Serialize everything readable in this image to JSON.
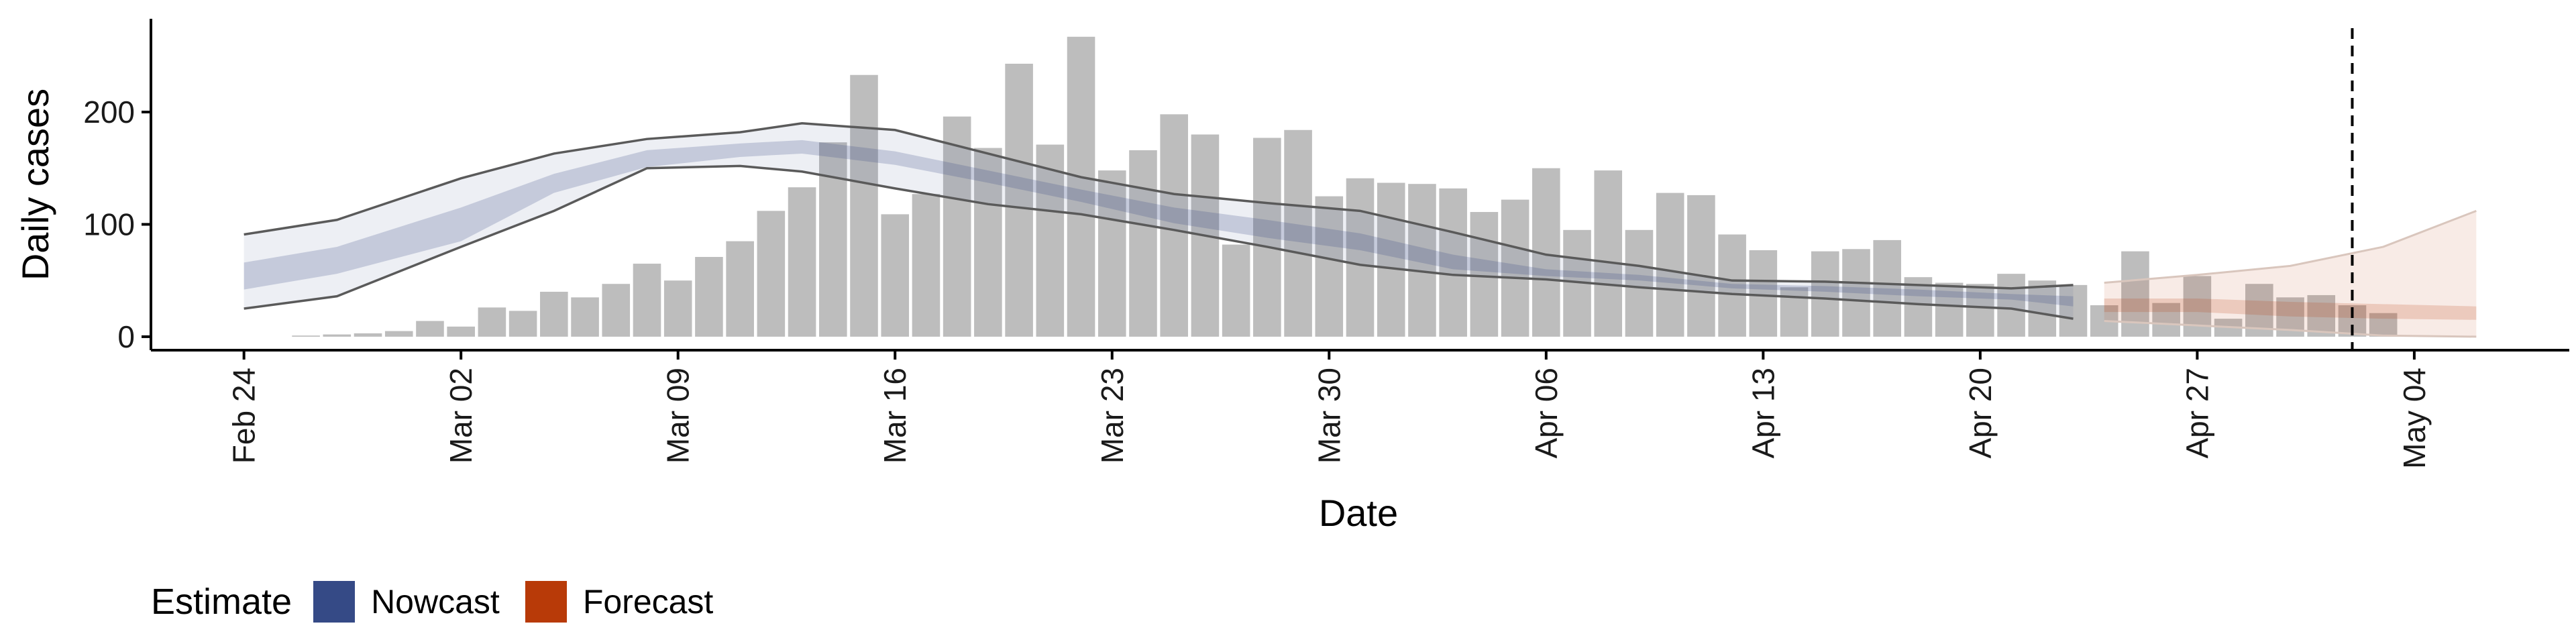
{
  "chart_data": {
    "type": "bar",
    "xlabel": "Date",
    "ylabel": "Daily cases",
    "x_range": [
      "2020-02-21",
      "2020-05-09"
    ],
    "ylim": [
      -12,
      283
    ],
    "y_ticks": [
      0,
      100,
      200
    ],
    "x_ticks": [
      {
        "date": "2020-02-24",
        "label": "Feb 24"
      },
      {
        "date": "2020-03-02",
        "label": "Mar 02"
      },
      {
        "date": "2020-03-09",
        "label": "Mar 09"
      },
      {
        "date": "2020-03-16",
        "label": "Mar 16"
      },
      {
        "date": "2020-03-23",
        "label": "Mar 23"
      },
      {
        "date": "2020-03-30",
        "label": "Mar 30"
      },
      {
        "date": "2020-04-06",
        "label": "Apr 06"
      },
      {
        "date": "2020-04-13",
        "label": "Apr 13"
      },
      {
        "date": "2020-04-20",
        "label": "Apr 20"
      },
      {
        "date": "2020-04-27",
        "label": "Apr 27"
      },
      {
        "date": "2020-05-04",
        "label": "May 04"
      }
    ],
    "grid": false,
    "legend": {
      "position": "bottom-left",
      "title": "Estimate",
      "items": [
        {
          "label": "Nowcast",
          "color": "#354a86"
        },
        {
          "label": "Forecast",
          "color": "#b83a08"
        }
      ]
    },
    "reference_line": {
      "date": "2020-05-02",
      "style": "dashed",
      "color": "#000000"
    },
    "bars": {
      "color": "#bdbdbd",
      "start_date": "2020-02-25",
      "values": [
        0,
        1,
        2,
        3,
        5,
        14,
        9,
        26,
        23,
        40,
        35,
        47,
        65,
        50,
        71,
        85,
        112,
        133,
        173,
        233,
        109,
        127,
        196,
        168,
        243,
        171,
        267,
        148,
        166,
        198,
        180,
        82,
        177,
        184,
        125,
        141,
        137,
        136,
        132,
        111,
        122,
        150,
        95,
        148,
        95,
        128,
        126,
        91,
        77,
        44,
        76,
        78,
        86,
        53,
        48,
        47,
        56,
        50,
        46,
        28,
        76,
        30,
        54,
        16,
        47,
        35,
        37,
        28,
        21
      ]
    },
    "series": [
      {
        "name": "Nowcast",
        "color": "#354a86",
        "dates": [
          "2020-02-24",
          "2020-02-27",
          "2020-03-02",
          "2020-03-05",
          "2020-03-08",
          "2020-03-11",
          "2020-03-13",
          "2020-03-16",
          "2020-03-19",
          "2020-03-22",
          "2020-03-25",
          "2020-03-28",
          "2020-03-31",
          "2020-04-03",
          "2020-04-06",
          "2020-04-09",
          "2020-04-12",
          "2020-04-15",
          "2020-04-18",
          "2020-04-21",
          "2020-04-23"
        ],
        "upper_90": [
          91,
          104,
          141,
          163,
          176,
          182,
          190,
          184,
          163,
          142,
          127,
          119,
          112,
          93,
          73,
          63,
          50,
          49,
          46,
          43,
          46
        ],
        "upper_50": [
          66,
          80,
          115,
          145,
          166,
          172,
          175,
          165,
          148,
          131,
          115,
          104,
          92,
          73,
          60,
          55,
          47,
          45,
          42,
          38,
          36
        ],
        "lower_50": [
          42,
          56,
          85,
          128,
          151,
          160,
          163,
          153,
          137,
          120,
          101,
          88,
          77,
          60,
          54,
          50,
          43,
          40,
          36,
          33,
          27
        ],
        "lower_90": [
          25,
          36,
          80,
          112,
          150,
          152,
          147,
          132,
          118,
          109,
          95,
          80,
          64,
          55,
          51,
          44,
          38,
          34,
          29,
          25,
          16
        ]
      },
      {
        "name": "Forecast",
        "color": "#b83a08",
        "dates": [
          "2020-04-24",
          "2020-04-27",
          "2020-04-30",
          "2020-05-03",
          "2020-05-06"
        ],
        "upper_90": [
          48,
          55,
          63,
          80,
          112
        ],
        "upper_50": [
          34,
          34,
          31,
          29,
          27
        ],
        "lower_50": [
          22,
          22,
          18,
          16,
          15
        ],
        "lower_90": [
          14,
          10,
          6,
          1,
          0
        ]
      }
    ]
  }
}
